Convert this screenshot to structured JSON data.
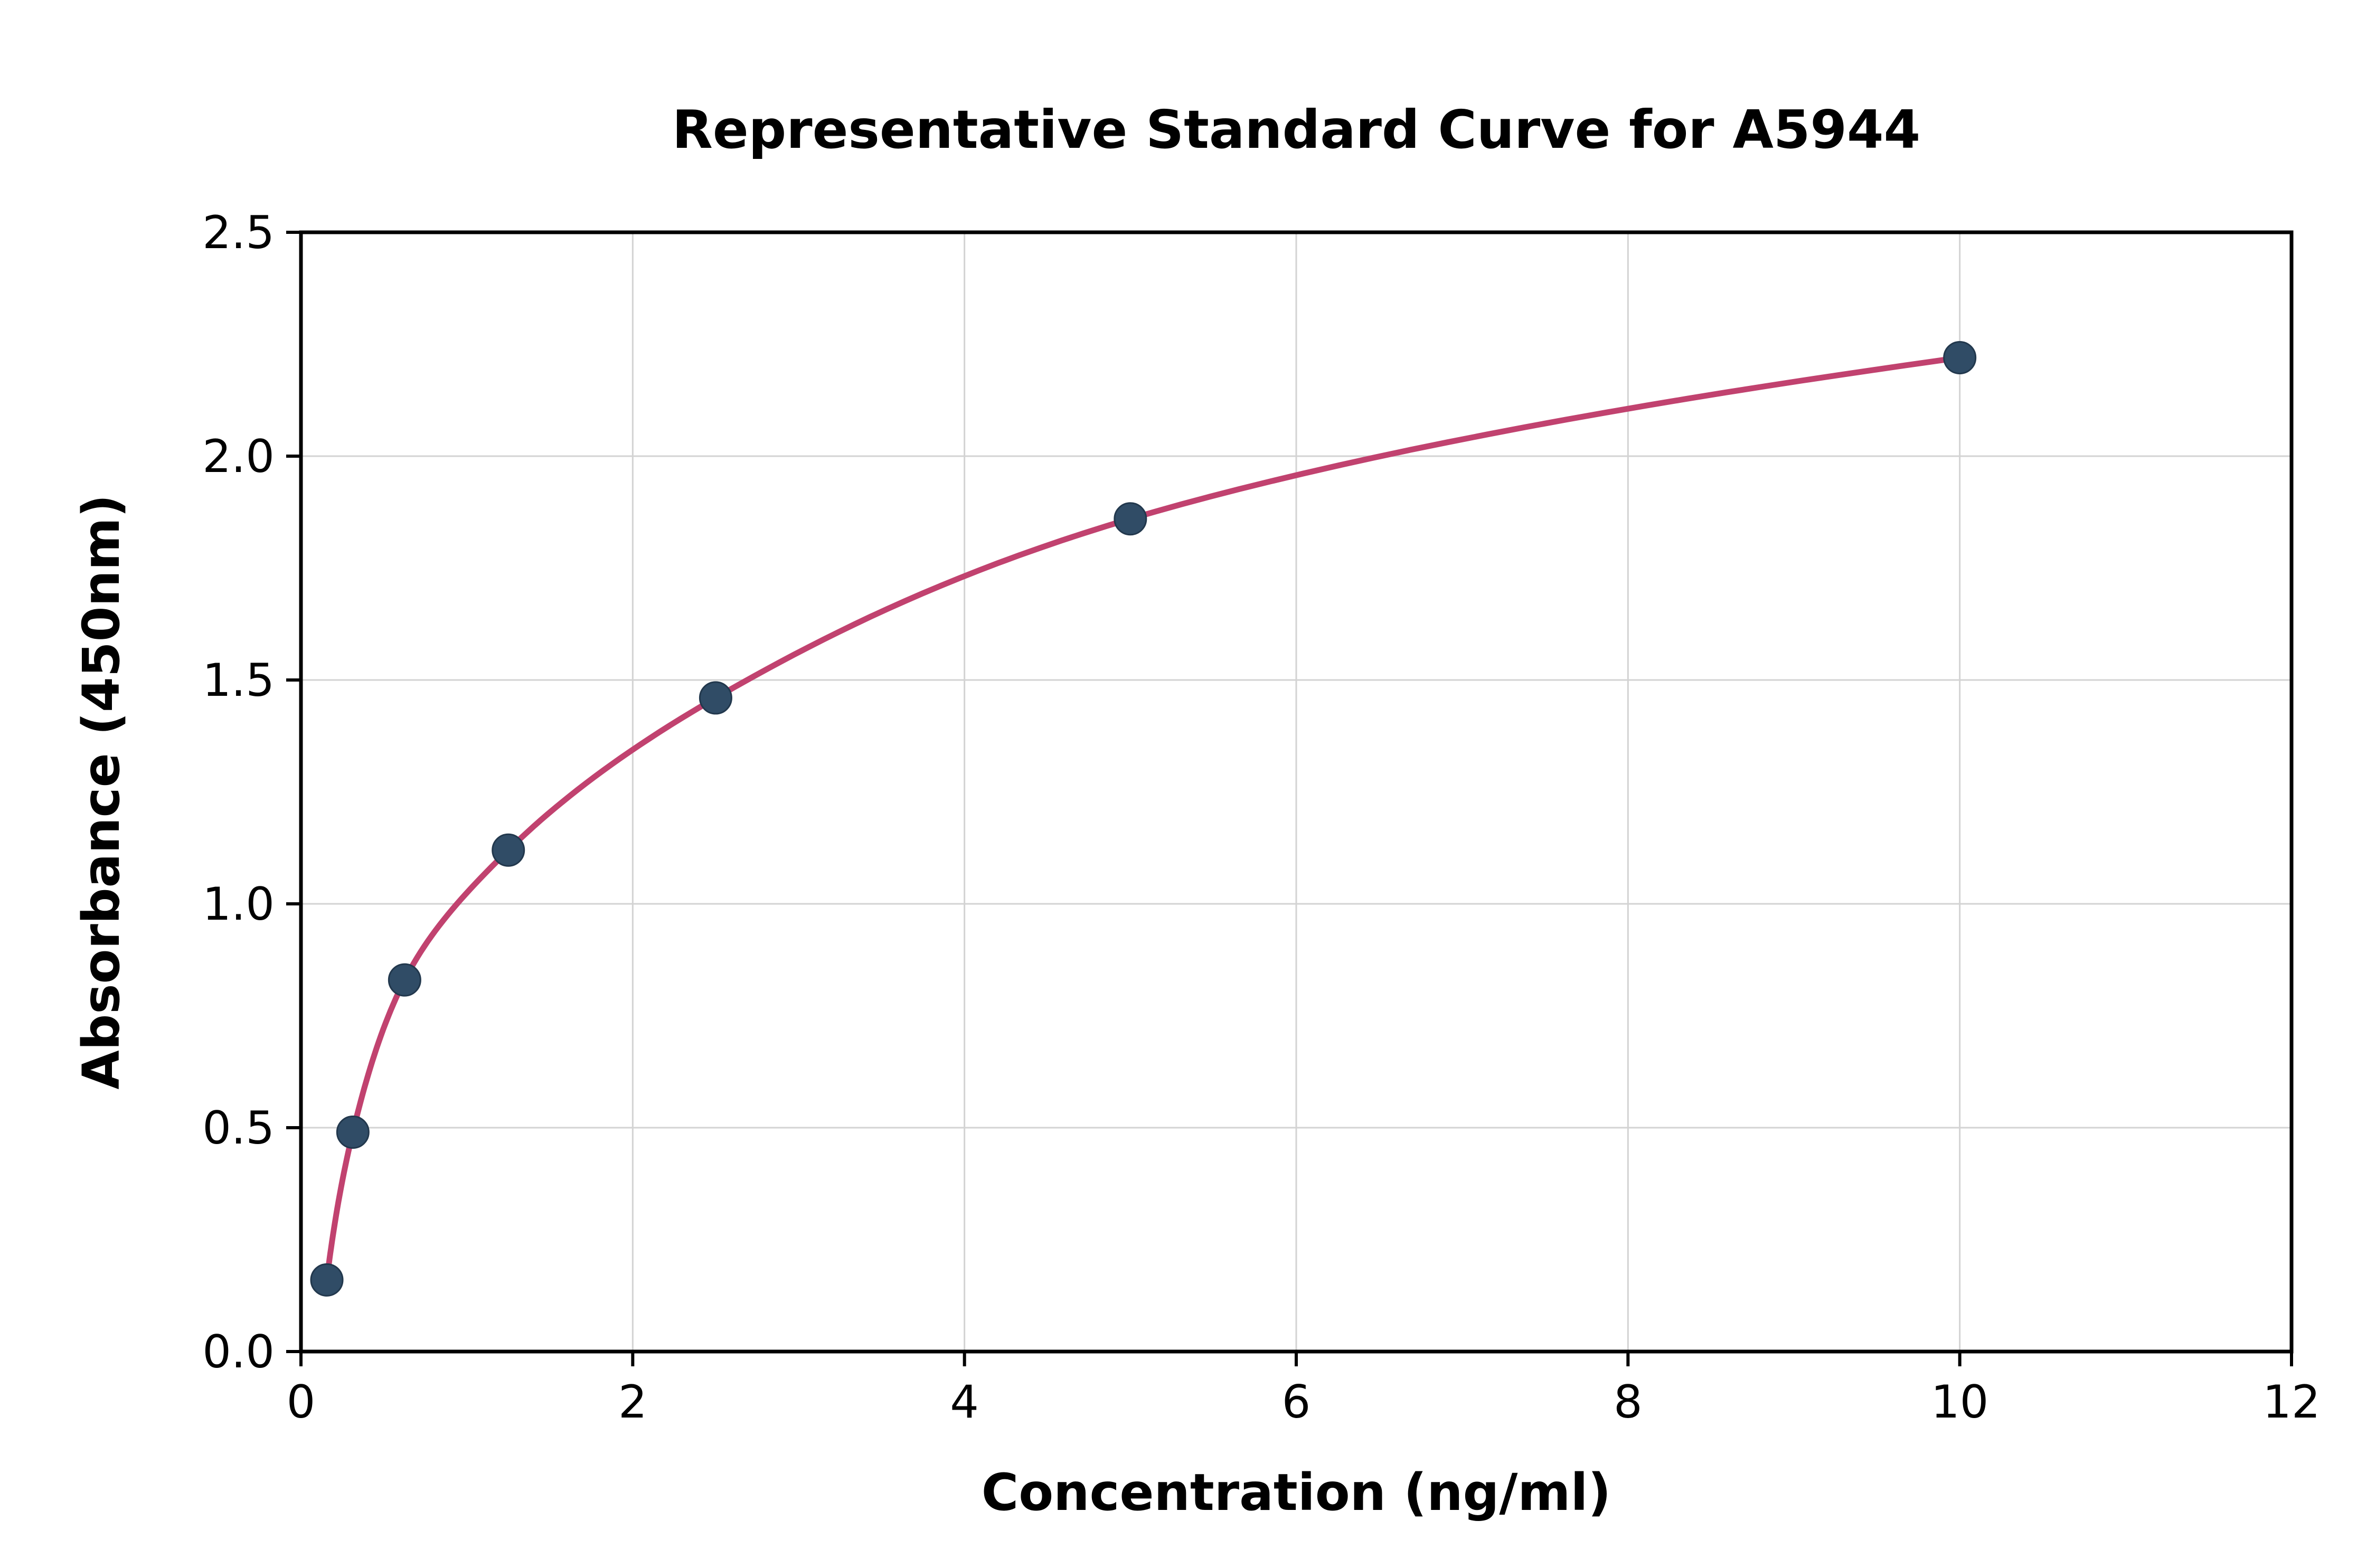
{
  "chart_data": {
    "type": "scatter",
    "title": "Representative Standard Curve for A5944",
    "xlabel": "Concentration (ng/ml)",
    "ylabel": "Absorbance (450nm)",
    "xlim": [
      0,
      12
    ],
    "ylim": [
      0,
      2.5
    ],
    "grid": true,
    "legend": "none",
    "x_ticks": [
      0,
      2,
      4,
      6,
      8,
      10,
      12
    ],
    "x_tick_labels": [
      "0",
      "2",
      "4",
      "6",
      "8",
      "10",
      "12"
    ],
    "y_ticks": [
      0,
      0.5,
      1.0,
      1.5,
      2.0,
      2.5
    ],
    "y_tick_labels": [
      "0.0",
      "0.5",
      "1.0",
      "1.5",
      "2.0",
      "2.5"
    ],
    "points": [
      {
        "x": 0.156,
        "y": 0.16
      },
      {
        "x": 0.313,
        "y": 0.49
      },
      {
        "x": 0.625,
        "y": 0.83
      },
      {
        "x": 1.25,
        "y": 1.12
      },
      {
        "x": 2.5,
        "y": 1.46
      },
      {
        "x": 5,
        "y": 1.86
      },
      {
        "x": 10,
        "y": 2.22
      }
    ],
    "fit_curve": "smooth saturating fit through all points",
    "colors": {
      "curve": "#c1426f",
      "point": "#304c66",
      "point_edge": "#22384d",
      "grid": "#d3d3d3",
      "axis": "#000000",
      "background": "#ffffff"
    }
  }
}
